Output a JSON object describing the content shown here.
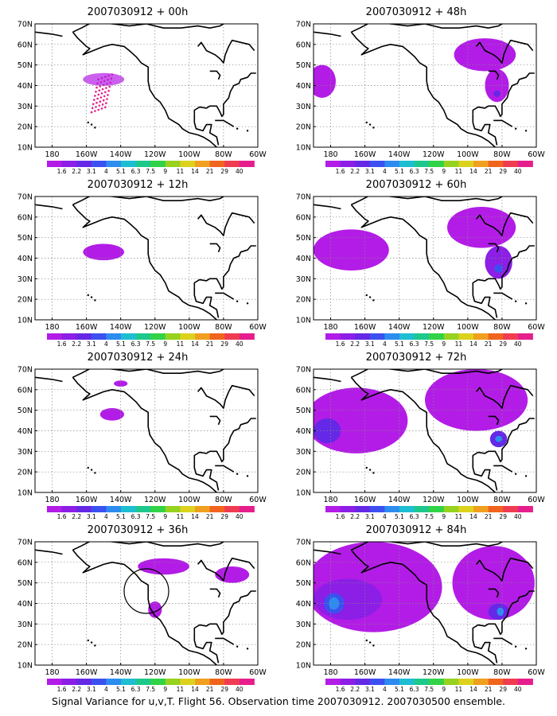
{
  "caption": "Signal Variance for u,v,T. Flight 56. Observation time 2007030912. 2007030500 ensemble.",
  "axes": {
    "lat_labels": [
      "10N",
      "20N",
      "30N",
      "40N",
      "50N",
      "60N",
      "70N"
    ],
    "lon_labels": [
      "180",
      "160W",
      "140W",
      "120W",
      "100W",
      "80W",
      "60W"
    ],
    "lat_range": [
      10,
      70
    ],
    "lon_range": [
      -190,
      -60
    ]
  },
  "colorbar": {
    "levels": [
      "1.6",
      "2.2",
      "3.1",
      "4",
      "5.1",
      "6.3",
      "7.5",
      "9",
      "11",
      "14",
      "21",
      "29",
      "40"
    ],
    "colors": [
      "#b31ce6",
      "#8c1ee6",
      "#6428e6",
      "#3c50f0",
      "#2d8cf0",
      "#1ebed2",
      "#1ec88c",
      "#32d246",
      "#96d21e",
      "#dcd21e",
      "#f0a01e",
      "#f0641e",
      "#f03c50",
      "#e61e8c"
    ]
  },
  "panels": [
    {
      "title": "2007030912 + 00h",
      "fields": []
    },
    {
      "title": "2007030912 + 12h",
      "fields": [
        {
          "level": 0,
          "lon": -150,
          "lat": 43,
          "rx": 12,
          "ry": 4
        }
      ]
    },
    {
      "title": "2007030912 + 24h",
      "fields": [
        {
          "level": 0,
          "lon": -145,
          "lat": 48,
          "rx": 7,
          "ry": 3
        },
        {
          "level": 0,
          "lon": -140,
          "lat": 63,
          "rx": 4,
          "ry": 1.5
        }
      ]
    },
    {
      "title": "2007030912 + 36h",
      "fields": [
        {
          "level": 0,
          "lon": -115,
          "lat": 58,
          "rx": 15,
          "ry": 4
        },
        {
          "level": 0,
          "lon": -120,
          "lat": 37,
          "rx": 4,
          "ry": 4
        },
        {
          "level": 0,
          "lon": -75,
          "lat": 54,
          "rx": 10,
          "ry": 4
        }
      ]
    },
    {
      "title": "2007030912 + 48h",
      "fields": [
        {
          "level": 0,
          "lon": -90,
          "lat": 55,
          "rx": 18,
          "ry": 8
        },
        {
          "level": 0,
          "lon": -83,
          "lat": 40,
          "rx": 7,
          "ry": 8
        },
        {
          "level": 2,
          "lon": -83,
          "lat": 36,
          "rx": 2,
          "ry": 1.5
        },
        {
          "level": 0,
          "lon": -185,
          "lat": 42,
          "rx": 8,
          "ry": 8
        }
      ]
    },
    {
      "title": "2007030912 + 60h",
      "fields": [
        {
          "level": 0,
          "lon": -168,
          "lat": 44,
          "rx": 22,
          "ry": 10
        },
        {
          "level": 0,
          "lon": -92,
          "lat": 55,
          "rx": 20,
          "ry": 10
        },
        {
          "level": 1,
          "lon": -82,
          "lat": 38,
          "rx": 8,
          "ry": 8
        },
        {
          "level": 3,
          "lon": -82,
          "lat": 35,
          "rx": 2.5,
          "ry": 2
        }
      ]
    },
    {
      "title": "2007030912 + 72h",
      "fields": [
        {
          "level": 0,
          "lon": -165,
          "lat": 45,
          "rx": 30,
          "ry": 16
        },
        {
          "level": 0,
          "lon": -95,
          "lat": 55,
          "rx": 30,
          "ry": 15
        },
        {
          "level": 2,
          "lon": -182,
          "lat": 40,
          "rx": 8,
          "ry": 6
        },
        {
          "level": 2,
          "lon": -82,
          "lat": 36,
          "rx": 5,
          "ry": 4
        },
        {
          "level": 4,
          "lon": -82,
          "lat": 36,
          "rx": 2,
          "ry": 1.5
        }
      ]
    },
    {
      "title": "2007030912 + 84h",
      "fields": [
        {
          "level": 0,
          "lon": -155,
          "lat": 48,
          "rx": 40,
          "ry": 22
        },
        {
          "level": 0,
          "lon": -85,
          "lat": 50,
          "rx": 24,
          "ry": 18
        },
        {
          "level": 1,
          "lon": -170,
          "lat": 42,
          "rx": 20,
          "ry": 10
        },
        {
          "level": 3,
          "lon": -178,
          "lat": 40,
          "rx": 6,
          "ry": 5
        },
        {
          "level": 4,
          "lon": -178,
          "lat": 40,
          "rx": 3,
          "ry": 3
        },
        {
          "level": 2,
          "lon": -82,
          "lat": 36,
          "rx": 6,
          "ry": 4
        },
        {
          "level": 4,
          "lon": -81,
          "lat": 36,
          "rx": 2,
          "ry": 2
        }
      ]
    }
  ]
}
